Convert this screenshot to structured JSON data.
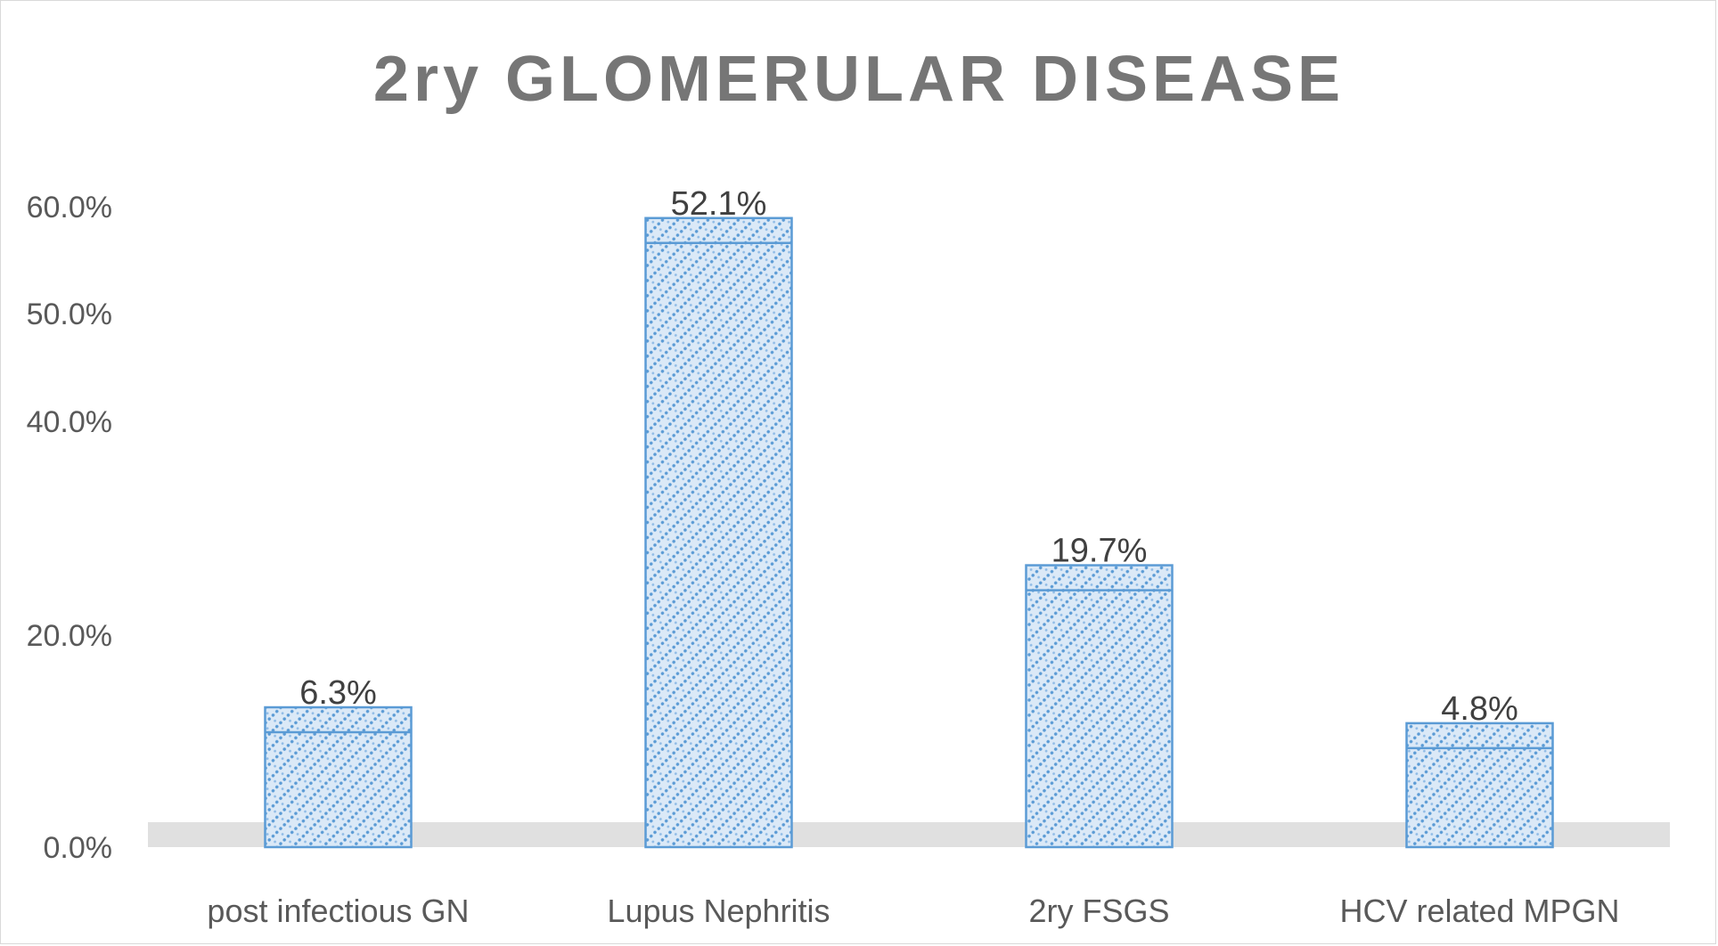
{
  "chart_data": {
    "type": "bar",
    "title": "2ry GLOMERULAR DISEASE",
    "categories": [
      "post infectious GN",
      "Lupus Nephritis",
      "2ry FSGS",
      "HCV related MPGN"
    ],
    "values": [
      6.3,
      52.1,
      19.7,
      4.8
    ],
    "value_labels": [
      "6.3%",
      "52.1%",
      "19.7%",
      "4.8%"
    ],
    "y_ticks": [
      {
        "value": 0,
        "label": "0.0%"
      },
      {
        "value": 20,
        "label": "20.0%"
      },
      {
        "value": 40,
        "label": "40.0%"
      },
      {
        "value": 50,
        "label": "50.0%"
      },
      {
        "value": 60,
        "label": "60.0%"
      }
    ],
    "ylim": [
      0,
      60
    ],
    "xlabel": "",
    "ylabel": "",
    "grid": false,
    "legend": "none",
    "colors": {
      "bar_border": "#5b9bd5",
      "bar_fill": "#dbe9f7",
      "pattern_dot": "#5b9bd5",
      "floor_band": "#e0e0e0",
      "title": "#767676"
    }
  }
}
